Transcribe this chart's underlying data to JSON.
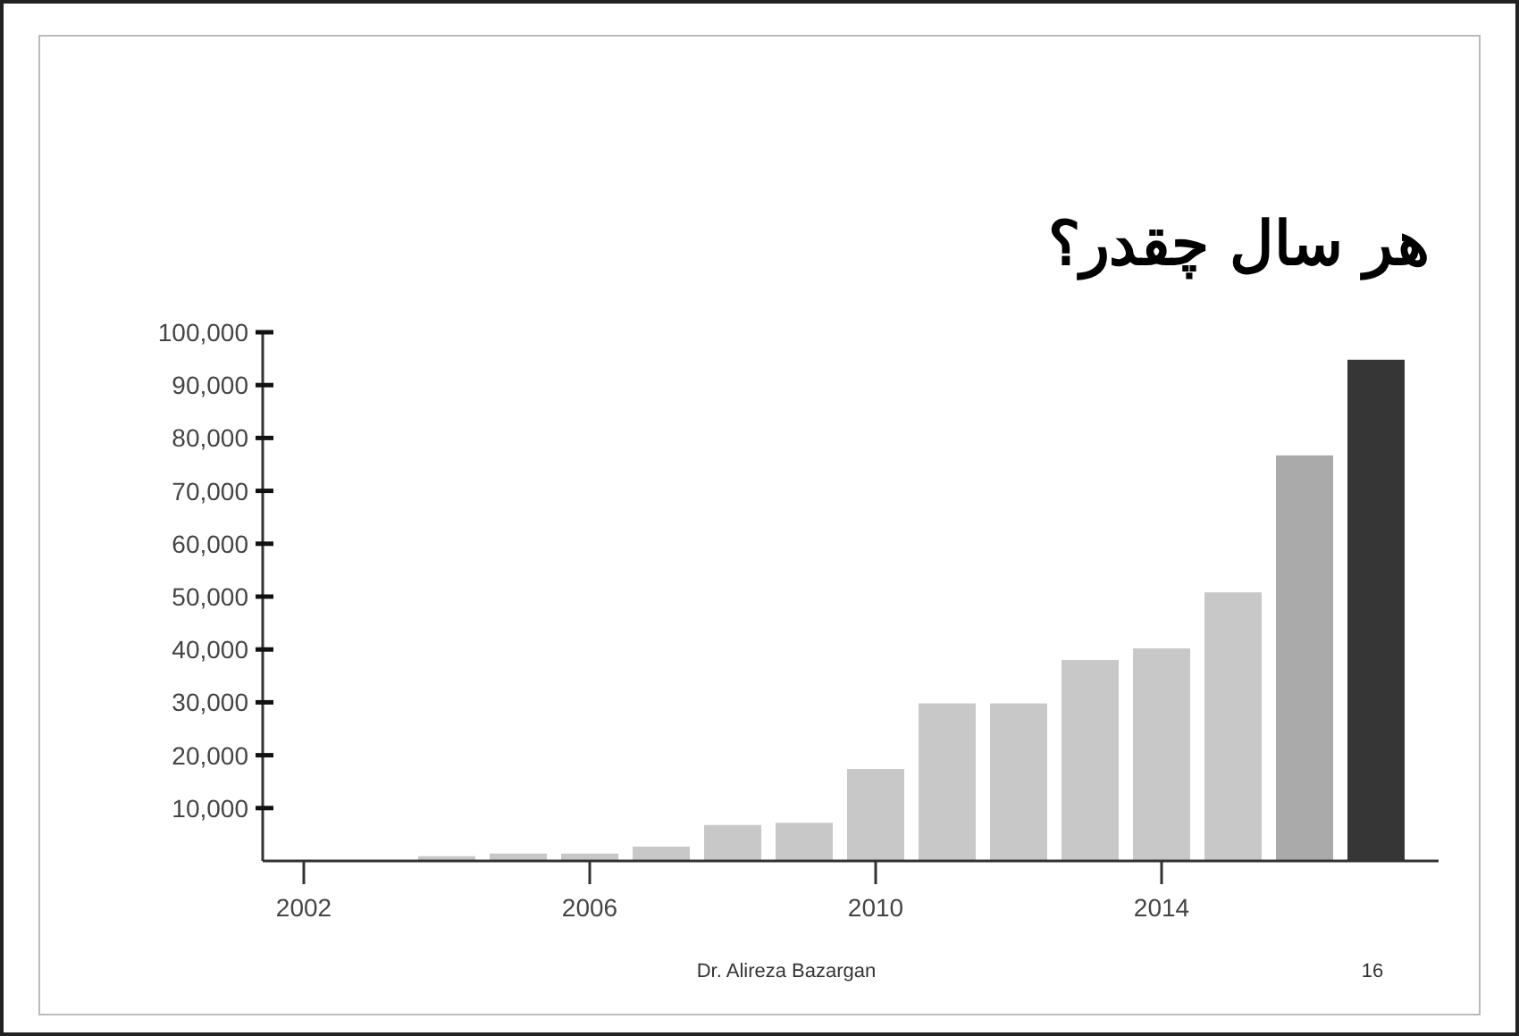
{
  "chart_data": {
    "type": "bar",
    "title": "هر سال چقدر؟",
    "categories": [
      "2002",
      null,
      null,
      null,
      "2006",
      null,
      null,
      null,
      "2010",
      null,
      null,
      null,
      "2014",
      null,
      null,
      null
    ],
    "values": [
      null,
      null,
      900,
      1400,
      1400,
      2700,
      6800,
      7200,
      17400,
      29800,
      29800,
      38000,
      40200,
      50800,
      76700,
      94800
    ],
    "colors": [
      null,
      null,
      "#c8c8c8",
      "#c8c8c8",
      "#c8c8c8",
      "#c8c8c8",
      "#c8c8c8",
      "#c8c8c8",
      "#c8c8c8",
      "#c8c8c8",
      "#c8c8c8",
      "#c8c8c8",
      "#c8c8c8",
      "#c8c8c8",
      "#aaaaaa",
      "#363636"
    ],
    "ylim": [
      0,
      100000
    ],
    "yticks": [
      {
        "value": 10000,
        "label": "10,000"
      },
      {
        "value": 20000,
        "label": "20,000"
      },
      {
        "value": 30000,
        "label": "30,000"
      },
      {
        "value": 40000,
        "label": "40,000"
      },
      {
        "value": 50000,
        "label": "50,000"
      },
      {
        "value": 60000,
        "label": "60,000"
      },
      {
        "value": 70000,
        "label": "70,000"
      },
      {
        "value": 80000,
        "label": "80,000"
      },
      {
        "value": 90000,
        "label": "90,000"
      },
      {
        "value": 100000,
        "label": "100,000"
      }
    ],
    "annotations": [
      "Dr. Alireza Bazargan",
      "16"
    ]
  }
}
